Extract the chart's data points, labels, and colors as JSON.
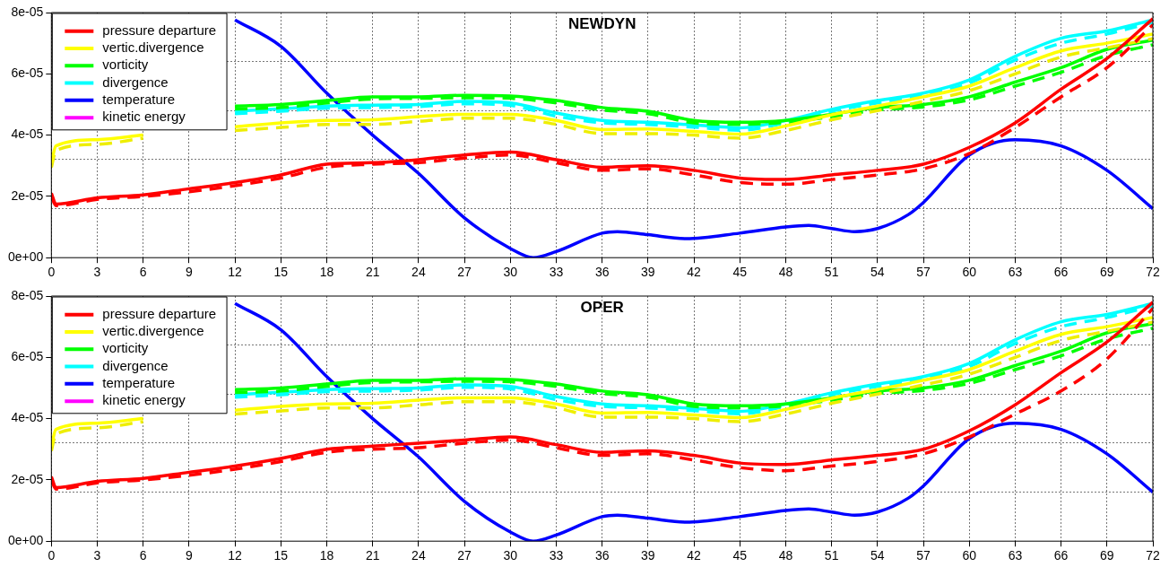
{
  "chart_data": [
    {
      "type": "line",
      "title": "NEWDYN",
      "x": [
        0,
        0.3,
        3,
        6,
        9,
        12,
        15,
        18,
        21,
        24,
        27,
        30,
        33,
        36,
        39,
        42,
        45,
        48,
        51,
        54,
        57,
        60,
        63,
        66,
        69,
        72
      ],
      "xlim": [
        0,
        72
      ],
      "xticks": [
        0,
        3,
        6,
        9,
        12,
        15,
        18,
        21,
        24,
        27,
        30,
        33,
        36,
        39,
        42,
        45,
        48,
        51,
        54,
        57,
        60,
        63,
        66,
        69,
        72
      ],
      "ylim": [
        0,
        8e-05
      ],
      "yticks": [
        {
          "value": 0,
          "label": "0e+00"
        },
        {
          "value": 1.6e-05,
          "label": null
        },
        {
          "value": 2e-05,
          "label": "2e-05"
        },
        {
          "value": 3.2e-05,
          "label": null
        },
        {
          "value": 4e-05,
          "label": "4e-05"
        },
        {
          "value": 4.8e-05,
          "label": null
        },
        {
          "value": 6e-05,
          "label": "6e-05"
        },
        {
          "value": 6.4e-05,
          "label": null
        },
        {
          "value": 8e-05,
          "label": "8e-05"
        }
      ],
      "grid": true,
      "legend": "top left",
      "series": [
        {
          "name": "pressure departure",
          "color": "#ff0000",
          "values": [
            2.1e-05,
            1.75e-05,
            1.95e-05,
            2.05e-05,
            2.25e-05,
            2.45e-05,
            2.7e-05,
            3.05e-05,
            3.1e-05,
            3.2e-05,
            3.35e-05,
            3.45e-05,
            3.2e-05,
            2.95e-05,
            3e-05,
            2.85e-05,
            2.6e-05,
            2.55e-05,
            2.7e-05,
            2.85e-05,
            3.05e-05,
            3.6e-05,
            4.4e-05,
            5.5e-05,
            6.5e-05,
            7.8e-05
          ]
        },
        {
          "color": "#ff0000",
          "line_style": "dashed",
          "values": [
            2e-05,
            1.7e-05,
            1.9e-05,
            2e-05,
            2.15e-05,
            2.35e-05,
            2.6e-05,
            2.95e-05,
            3.05e-05,
            3.1e-05,
            3.25e-05,
            3.35e-05,
            3.1e-05,
            2.85e-05,
            2.9e-05,
            2.7e-05,
            2.45e-05,
            2.4e-05,
            2.55e-05,
            2.7e-05,
            2.9e-05,
            3.4e-05,
            4.25e-05,
            5.25e-05,
            6.2e-05,
            7.6e-05
          ]
        },
        {
          "name": "vertic.divergence",
          "color": "#ffff00",
          "values": [
            3.1e-05,
            3.65e-05,
            3.85e-05,
            4e-05,
            null,
            4.27e-05,
            4.4e-05,
            4.48e-05,
            4.5e-05,
            4.6e-05,
            4.68e-05,
            4.68e-05,
            4.48e-05,
            4.18e-05,
            4.2e-05,
            4.12e-05,
            4.03e-05,
            4.3e-05,
            4.66e-05,
            4.95e-05,
            5.25e-05,
            5.6e-05,
            6.2e-05,
            6.75e-05,
            7e-05,
            7.3e-05
          ]
        },
        {
          "color": "#eeee00",
          "line_style": "dashed",
          "values": [
            2.95e-05,
            3.5e-05,
            3.7e-05,
            3.9e-05,
            null,
            4.15e-05,
            4.25e-05,
            4.35e-05,
            4.35e-05,
            4.45e-05,
            4.55e-05,
            4.55e-05,
            4.35e-05,
            4.05e-05,
            4.05e-05,
            4e-05,
            3.9e-05,
            4.15e-05,
            4.5e-05,
            4.8e-05,
            5.1e-05,
            5.45e-05,
            6e-05,
            6.55e-05,
            6.85e-05,
            7.15e-05
          ]
        },
        {
          "name": "vorticity",
          "color": "#00ff00",
          "values": [
            null,
            null,
            null,
            null,
            null,
            4.95e-05,
            5e-05,
            5.13e-05,
            5.25e-05,
            5.25e-05,
            5.3e-05,
            5.28e-05,
            5.13e-05,
            4.9e-05,
            4.78e-05,
            4.48e-05,
            4.42e-05,
            4.48e-05,
            4.68e-05,
            4.9e-05,
            5e-05,
            5.25e-05,
            5.73e-05,
            6.2e-05,
            6.8e-05,
            7.1e-05
          ]
        },
        {
          "color": "#00ff00",
          "line_style": "dashed",
          "values": [
            null,
            null,
            null,
            null,
            null,
            4.85e-05,
            4.9e-05,
            5.05e-05,
            5.18e-05,
            5.2e-05,
            5.22e-05,
            5.2e-05,
            5.05e-05,
            4.82e-05,
            4.7e-05,
            4.4e-05,
            4.35e-05,
            4.42e-05,
            4.6e-05,
            4.82e-05,
            4.92e-05,
            5.15e-05,
            5.6e-05,
            6.05e-05,
            6.6e-05,
            6.95e-05
          ]
        },
        {
          "name": "divergence",
          "color": "#00ffff",
          "values": [
            null,
            null,
            null,
            null,
            null,
            4.78e-05,
            4.86e-05,
            4.95e-05,
            4.98e-05,
            5e-05,
            5.1e-05,
            5.05e-05,
            4.72e-05,
            4.48e-05,
            4.42e-05,
            4.33e-05,
            4.24e-05,
            4.48e-05,
            4.84e-05,
            5.13e-05,
            5.37e-05,
            5.8e-05,
            6.57e-05,
            7.16e-05,
            7.4e-05,
            7.76e-05
          ]
        },
        {
          "color": "#00ffff",
          "line_style": "dashed",
          "values": [
            null,
            null,
            null,
            null,
            null,
            4.7e-05,
            4.78e-05,
            4.88e-05,
            4.9e-05,
            4.93e-05,
            5.02e-05,
            4.97e-05,
            4.62e-05,
            4.4e-05,
            4.35e-05,
            4.26e-05,
            4.16e-05,
            4.4e-05,
            4.78e-05,
            5.05e-05,
            5.3e-05,
            5.7e-05,
            6.45e-05,
            7e-05,
            7.3e-05,
            7.68e-05
          ]
        },
        {
          "name": "temperature",
          "color": "#0000ff",
          "x": [
            12,
            15,
            18,
            21,
            24,
            27,
            30,
            31.5,
            33,
            36,
            37,
            39,
            41.5,
            45,
            48,
            49.5,
            51,
            52.5,
            54,
            56,
            57,
            60,
            63,
            66,
            69,
            72
          ],
          "values": [
            7.76e-05,
            6.9e-05,
            5.37e-05,
            4e-05,
            2.75e-05,
            1.3e-05,
            3e-06,
            0,
            2e-06,
            8e-06,
            8.5e-06,
            7.5e-06,
            6.2e-06,
            8e-06,
            1e-05,
            1.05e-05,
            9.5e-06,
            8.5e-06,
            9.5e-06,
            1.4e-05,
            1.8e-05,
            3.35e-05,
            3.85e-05,
            3.65e-05,
            2.85e-05,
            1.6e-05
          ]
        },
        {
          "name": "kinetic energy",
          "color": "#ff00ff",
          "values": [
            null,
            null,
            null,
            null,
            null,
            null,
            null,
            null,
            null,
            null,
            null,
            null,
            null,
            null,
            null,
            null,
            null,
            null,
            null,
            null,
            null,
            null,
            null,
            null,
            null,
            null
          ]
        }
      ]
    },
    {
      "type": "line",
      "title": "OPER",
      "x": [
        0,
        0.3,
        3,
        6,
        9,
        12,
        15,
        18,
        21,
        24,
        27,
        30,
        33,
        36,
        39,
        42,
        45,
        48,
        51,
        54,
        57,
        60,
        63,
        66,
        69,
        72
      ],
      "xlim": [
        0,
        72
      ],
      "xticks": [
        0,
        3,
        6,
        9,
        12,
        15,
        18,
        21,
        24,
        27,
        30,
        33,
        36,
        39,
        42,
        45,
        48,
        51,
        54,
        57,
        60,
        63,
        66,
        69,
        72
      ],
      "ylim": [
        0,
        8e-05
      ],
      "yticks": [
        {
          "value": 0,
          "label": "0e+00"
        },
        {
          "value": 1.6e-05,
          "label": null
        },
        {
          "value": 2e-05,
          "label": "2e-05"
        },
        {
          "value": 3.2e-05,
          "label": null
        },
        {
          "value": 4e-05,
          "label": "4e-05"
        },
        {
          "value": 4.8e-05,
          "label": null
        },
        {
          "value": 6e-05,
          "label": "6e-05"
        },
        {
          "value": 6.4e-05,
          "label": null
        },
        {
          "value": 8e-05,
          "label": "8e-05"
        }
      ],
      "grid": true,
      "legend": "top left",
      "series": [
        {
          "name": "pressure departure",
          "color": "#ff0000",
          "values": [
            2.1e-05,
            1.75e-05,
            1.95e-05,
            2.05e-05,
            2.25e-05,
            2.45e-05,
            2.7e-05,
            3e-05,
            3.1e-05,
            3.2e-05,
            3.3e-05,
            3.4e-05,
            3.15e-05,
            2.9e-05,
            2.95e-05,
            2.8e-05,
            2.55e-05,
            2.5e-05,
            2.65e-05,
            2.8e-05,
            3e-05,
            3.6e-05,
            4.45e-05,
            5.5e-05,
            6.5e-05,
            7.8e-05
          ]
        },
        {
          "color": "#ff0000",
          "line_style": "dashed",
          "values": [
            2e-05,
            1.7e-05,
            1.9e-05,
            2e-05,
            2.15e-05,
            2.35e-05,
            2.6e-05,
            2.9e-05,
            3e-05,
            3.05e-05,
            3.2e-05,
            3.3e-05,
            3.05e-05,
            2.8e-05,
            2.85e-05,
            2.65e-05,
            2.4e-05,
            2.3e-05,
            2.45e-05,
            2.6e-05,
            2.85e-05,
            3.4e-05,
            4.15e-05,
            4.9e-05,
            5.95e-05,
            7.6e-05
          ]
        },
        {
          "name": "vertic.divergence",
          "color": "#ffff00",
          "values": [
            3.1e-05,
            3.65e-05,
            3.85e-05,
            4e-05,
            null,
            4.27e-05,
            4.4e-05,
            4.48e-05,
            4.5e-05,
            4.6e-05,
            4.68e-05,
            4.68e-05,
            4.48e-05,
            4.18e-05,
            4.2e-05,
            4.12e-05,
            4.03e-05,
            4.3e-05,
            4.66e-05,
            4.95e-05,
            5.25e-05,
            5.6e-05,
            6.2e-05,
            6.75e-05,
            7e-05,
            7.3e-05
          ]
        },
        {
          "color": "#eeee00",
          "line_style": "dashed",
          "values": [
            2.95e-05,
            3.5e-05,
            3.7e-05,
            3.9e-05,
            null,
            4.15e-05,
            4.25e-05,
            4.35e-05,
            4.35e-05,
            4.45e-05,
            4.55e-05,
            4.55e-05,
            4.35e-05,
            4.05e-05,
            4.05e-05,
            4e-05,
            3.9e-05,
            4.15e-05,
            4.5e-05,
            4.8e-05,
            5.1e-05,
            5.45e-05,
            6e-05,
            6.55e-05,
            6.85e-05,
            7.15e-05
          ]
        },
        {
          "name": "vorticity",
          "color": "#00ff00",
          "values": [
            null,
            null,
            null,
            null,
            null,
            4.95e-05,
            5e-05,
            5.13e-05,
            5.25e-05,
            5.25e-05,
            5.3e-05,
            5.28e-05,
            5.13e-05,
            4.9e-05,
            4.78e-05,
            4.48e-05,
            4.42e-05,
            4.48e-05,
            4.68e-05,
            4.9e-05,
            5e-05,
            5.25e-05,
            5.73e-05,
            6.2e-05,
            6.8e-05,
            7.1e-05
          ]
        },
        {
          "color": "#00ff00",
          "line_style": "dashed",
          "values": [
            null,
            null,
            null,
            null,
            null,
            4.85e-05,
            4.9e-05,
            5.05e-05,
            5.18e-05,
            5.2e-05,
            5.22e-05,
            5.2e-05,
            5.05e-05,
            4.82e-05,
            4.7e-05,
            4.4e-05,
            4.35e-05,
            4.42e-05,
            4.6e-05,
            4.82e-05,
            4.92e-05,
            5.15e-05,
            5.6e-05,
            6.05e-05,
            6.6e-05,
            6.95e-05
          ]
        },
        {
          "name": "divergence",
          "color": "#00ffff",
          "values": [
            null,
            null,
            null,
            null,
            null,
            4.78e-05,
            4.86e-05,
            4.95e-05,
            4.98e-05,
            5e-05,
            5.1e-05,
            5.05e-05,
            4.72e-05,
            4.48e-05,
            4.42e-05,
            4.33e-05,
            4.24e-05,
            4.48e-05,
            4.84e-05,
            5.13e-05,
            5.37e-05,
            5.8e-05,
            6.57e-05,
            7.16e-05,
            7.4e-05,
            7.76e-05
          ]
        },
        {
          "color": "#00ffff",
          "line_style": "dashed",
          "values": [
            null,
            null,
            null,
            null,
            null,
            4.7e-05,
            4.78e-05,
            4.88e-05,
            4.9e-05,
            4.93e-05,
            5.02e-05,
            4.97e-05,
            4.62e-05,
            4.4e-05,
            4.35e-05,
            4.26e-05,
            4.16e-05,
            4.4e-05,
            4.78e-05,
            5.05e-05,
            5.3e-05,
            5.7e-05,
            6.45e-05,
            7e-05,
            7.3e-05,
            7.68e-05
          ]
        },
        {
          "name": "temperature",
          "color": "#0000ff",
          "x": [
            12,
            15,
            18,
            21,
            24,
            27,
            30,
            31.5,
            33,
            36,
            37,
            39,
            41.5,
            45,
            48,
            49.5,
            51,
            52.5,
            54,
            56,
            57,
            60,
            63,
            66,
            69,
            72
          ],
          "values": [
            7.76e-05,
            6.9e-05,
            5.37e-05,
            4e-05,
            2.75e-05,
            1.3e-05,
            3e-06,
            0,
            2e-06,
            8e-06,
            8.5e-06,
            7.5e-06,
            6.2e-06,
            8e-06,
            1e-05,
            1.05e-05,
            9.5e-06,
            8.5e-06,
            9.5e-06,
            1.4e-05,
            1.8e-05,
            3.35e-05,
            3.85e-05,
            3.65e-05,
            2.85e-05,
            1.6e-05
          ]
        },
        {
          "name": "kinetic energy",
          "color": "#ff00ff",
          "values": [
            null,
            null,
            null,
            null,
            null,
            null,
            null,
            null,
            null,
            null,
            null,
            null,
            null,
            null,
            null,
            null,
            null,
            null,
            null,
            null,
            null,
            null,
            null,
            null,
            null,
            null
          ]
        }
      ]
    }
  ]
}
